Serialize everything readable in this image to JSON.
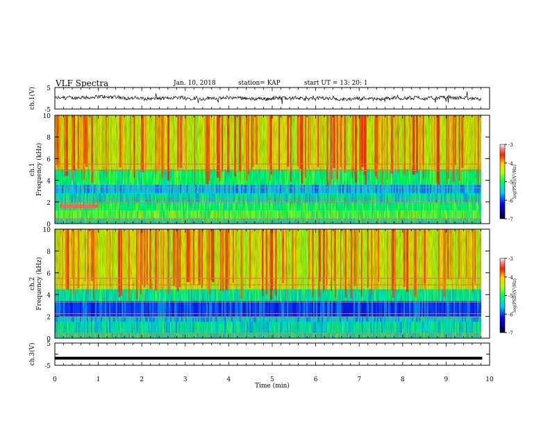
{
  "header": {
    "title": "VLF Spectra",
    "date": "Jan. 10, 2018",
    "station": "station= KAP",
    "start": "start  UT =    13: 20: 1"
  },
  "chart_data": [
    {
      "type": "line",
      "panel": "ch1-waveform",
      "ylabel": "ch.1(V)",
      "ylim": [
        -5,
        5
      ],
      "yticks": [
        "5",
        "-5"
      ],
      "xlim": [
        0,
        10
      ],
      "color": "#000000",
      "description_values": {
        "baseline": 0,
        "amplitude_range": [
          -1.5,
          1.5
        ]
      }
    },
    {
      "type": "heatmap",
      "panel": "ch1-spectrogram",
      "ylabel": "ch.1",
      "ylabel2": "Frequency (kHz)",
      "ylim": [
        0,
        10
      ],
      "yticks": [
        "0",
        "2",
        "4",
        "6",
        "8",
        "10"
      ],
      "xlim": [
        0,
        9.83
      ],
      "colorbar": {
        "label": "log(PSD)(V²/Hz)",
        "ticks": [
          "-3",
          "-4",
          "-5",
          "-6",
          "-7"
        ],
        "range": [
          -7,
          -3
        ]
      },
      "bands": [
        {
          "from": 0,
          "to": 0.5,
          "level": -5.2
        },
        {
          "from": 0.5,
          "to": 1.2,
          "level": -4.8
        },
        {
          "from": 1.2,
          "to": 2.0,
          "level": -5.0
        },
        {
          "from": 2.0,
          "to": 2.8,
          "level": -5.3
        },
        {
          "from": 2.8,
          "to": 3.6,
          "level": -5.6
        },
        {
          "from": 3.6,
          "to": 5.0,
          "level": -5.0
        },
        {
          "from": 5.0,
          "to": 10,
          "level": -4.3
        }
      ],
      "features": [
        {
          "t_start": 0.1,
          "t_end": 1.0,
          "f": 1.6,
          "level": -3.3
        }
      ]
    },
    {
      "type": "heatmap",
      "panel": "ch2-spectrogram",
      "ylabel": "ch.2",
      "ylabel2": "Frequency (kHz)",
      "ylim": [
        0,
        10
      ],
      "yticks": [
        "0",
        "2",
        "4",
        "6",
        "8",
        "10"
      ],
      "xlim": [
        0,
        9.83
      ],
      "colorbar": {
        "label": "log(PSD)(V²/Hz)",
        "ticks": [
          "-3",
          "-4",
          "-5",
          "-6",
          "-7"
        ],
        "range": [
          -7,
          -3
        ]
      },
      "bands": [
        {
          "from": 0,
          "to": 0.5,
          "level": -5.2
        },
        {
          "from": 0.5,
          "to": 1.5,
          "level": -5.3
        },
        {
          "from": 1.5,
          "to": 2.0,
          "level": -5.5
        },
        {
          "from": 2.0,
          "to": 3.4,
          "level": -6.0
        },
        {
          "from": 3.4,
          "to": 4.5,
          "level": -5.2
        },
        {
          "from": 4.5,
          "to": 10,
          "level": -4.3
        }
      ]
    },
    {
      "type": "line",
      "panel": "ch3-waveform",
      "ylabel": "ch.3(V)",
      "ylim": [
        -5,
        5
      ],
      "yticks": [
        "5",
        "0",
        "-5"
      ],
      "xlim": [
        0,
        9.83
      ],
      "constant_value": -1.8,
      "color": "#000000"
    }
  ],
  "xaxis": {
    "label": "Time (min)",
    "ticks": [
      "0",
      "1",
      "2",
      "3",
      "4",
      "5",
      "6",
      "7",
      "8",
      "9",
      "10"
    ],
    "range": [
      0,
      10
    ]
  }
}
